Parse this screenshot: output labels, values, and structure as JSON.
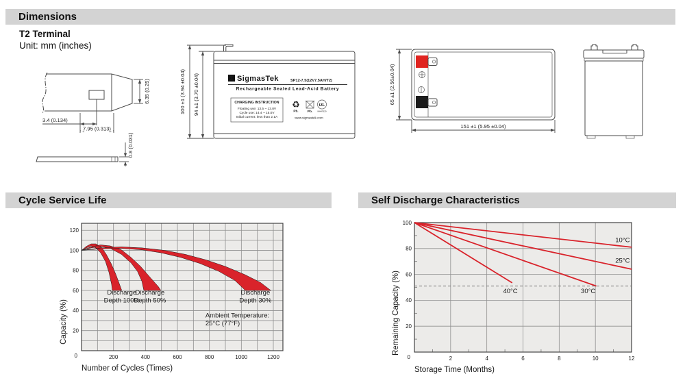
{
  "page": {
    "title": "Dimensions",
    "terminal_type": "T2 Terminal",
    "unit_note": "Unit: mm (inches)",
    "section_cycle": "Cycle Service Life",
    "section_self_discharge": "Self Discharge Characteristics"
  },
  "drawing": {
    "terminal": {
      "height": "6.35 (0.25)",
      "hole_offset": "3.4 (0.134)",
      "tip_length": "7.95 (0.313)",
      "thickness": "0.8 (0.031)"
    },
    "front": {
      "overall_height": "100 ±1 (3.94 ±0.04)",
      "container_height": "94 ±1 (3.70 ±0.04)",
      "logo_glyph": "Σ",
      "brand": "SigmasTek",
      "model": "SP12-7.5(12V7.5AH/T2)",
      "battery_type": "Rechargeable Sealed Lead-Acid Battery",
      "charging_title": "CHARGING INSTRUCTION",
      "charging_line1": "Floating use: 13.5 ~ 13.8V",
      "charging_line2": "Cycle use: 14.4 ~ 15.0V",
      "charging_line3": "Initial current: less than 2.1A",
      "recycle_glyph": "♻",
      "pb_recycle": "Pb.",
      "pb_bin": "Pb.",
      "ul_text": "UL",
      "ul_code": "MH47629",
      "website": "www.sigmastek.com"
    },
    "top": {
      "width": "65 ±1 (2.56±0.04)",
      "length": "151 ±1 (5.95 ±0.04)"
    }
  },
  "chart_data": [
    {
      "type": "area",
      "title": "Cycle Service Life",
      "xlabel": "Number of Cycles (Times)",
      "ylabel": "Capacity (%)",
      "xlim": [
        0,
        1260
      ],
      "ylim": [
        0,
        127
      ],
      "x_grid_step": 100,
      "y_grid_step": 10,
      "x_ticks": [
        200,
        400,
        600,
        800,
        1000,
        1200
      ],
      "y_ticks": [
        20,
        40,
        60,
        80,
        100,
        120
      ],
      "origin_label": "0",
      "grid": true,
      "legend_position": "none",
      "band_color": "#d9232b",
      "bands": [
        {
          "name": "Discharge Depth 100%",
          "upper": [
            [
              0,
              100
            ],
            [
              30,
              104
            ],
            [
              60,
              106.5
            ],
            [
              90,
              106.5
            ],
            [
              125,
              103
            ],
            [
              155,
              96
            ],
            [
              185,
              87
            ],
            [
              215,
              76
            ],
            [
              245,
              63
            ],
            [
              252,
              60
            ]
          ],
          "lower": [
            [
              0,
              100
            ],
            [
              30,
              102.5
            ],
            [
              60,
              104.5
            ],
            [
              90,
              102.5
            ],
            [
              120,
              97.5
            ],
            [
              150,
              89
            ],
            [
              172,
              78
            ],
            [
              188,
              66
            ],
            [
              193,
              60
            ]
          ]
        },
        {
          "name": "Discharge Depth 50%",
          "upper": [
            [
              0,
              100
            ],
            [
              60,
              103.5
            ],
            [
              120,
              105.5
            ],
            [
              180,
              104.5
            ],
            [
              250,
              100.5
            ],
            [
              310,
              93
            ],
            [
              370,
              84
            ],
            [
              430,
              73
            ],
            [
              480,
              64
            ],
            [
              497,
              60
            ]
          ],
          "lower": [
            [
              0,
              100
            ],
            [
              60,
              102.5
            ],
            [
              120,
              104
            ],
            [
              180,
              102
            ],
            [
              250,
              96
            ],
            [
              310,
              87.5
            ],
            [
              350,
              79
            ],
            [
              378,
              69
            ],
            [
              390,
              60
            ]
          ]
        },
        {
          "name": "Discharge Depth 30%",
          "upper": [
            [
              0,
              100
            ],
            [
              120,
              102.5
            ],
            [
              250,
              103.5
            ],
            [
              380,
              102.5
            ],
            [
              520,
              100
            ],
            [
              650,
              96
            ],
            [
              780,
              90.5
            ],
            [
              900,
              84
            ],
            [
              1020,
              76
            ],
            [
              1120,
              68
            ],
            [
              1185,
              60
            ]
          ],
          "lower": [
            [
              0,
              100
            ],
            [
              120,
              101.5
            ],
            [
              250,
              102
            ],
            [
              380,
              100.5
            ],
            [
              500,
              97.5
            ],
            [
              620,
              93
            ],
            [
              740,
              87
            ],
            [
              860,
              79
            ],
            [
              960,
              70
            ],
            [
              1025,
              60
            ]
          ]
        }
      ],
      "annotations": [
        {
          "lines": [
            "Discharge",
            "Depth 100%"
          ],
          "x": 252,
          "y": 56,
          "anchor": "middle"
        },
        {
          "lines": [
            "Discharge",
            "Depth 50%"
          ],
          "x": 428,
          "y": 56,
          "anchor": "middle"
        },
        {
          "lines": [
            "Discharge",
            "Depth 30%"
          ],
          "x": 1088,
          "y": 56,
          "anchor": "middle"
        },
        {
          "lines": [
            "Ambient Temperature:",
            "25°C (77°F)"
          ],
          "x": 775,
          "y": 33,
          "anchor": "start"
        }
      ]
    },
    {
      "type": "line",
      "title": "Self Discharge Characteristics",
      "xlabel": "Storage Time (Months)",
      "ylabel": "Remaining Capacity (%)",
      "xlim": [
        0,
        12
      ],
      "ylim": [
        0,
        100
      ],
      "x_grid_step": 2,
      "y_grid_step": 20,
      "x_minor_step": 1,
      "y_minor_step": 10,
      "x_ticks": [
        2,
        4,
        6,
        8,
        10,
        12
      ],
      "y_ticks": [
        20,
        40,
        60,
        80,
        100
      ],
      "origin_label": "0",
      "grid": true,
      "line_color": "#d9232b",
      "series": [
        {
          "name": "10°C",
          "points": [
            [
              0,
              100
            ],
            [
              12,
              81
            ]
          ],
          "label_x": 11.1,
          "label_y": 85
        },
        {
          "name": "25°C",
          "points": [
            [
              0,
              100
            ],
            [
              12,
              64
            ]
          ],
          "label_x": 11.1,
          "label_y": 69
        },
        {
          "name": "30°C",
          "points": [
            [
              0,
              100
            ],
            [
              10.05,
              51
            ]
          ],
          "label_x": 9.2,
          "label_y": 45.5
        },
        {
          "name": "40°C",
          "points": [
            [
              0,
              100
            ],
            [
              5.4,
              53.5
            ]
          ],
          "label_x": 4.9,
          "label_y": 45.5
        }
      ],
      "reference_line": {
        "y": 51,
        "style": "dashed"
      }
    }
  ]
}
